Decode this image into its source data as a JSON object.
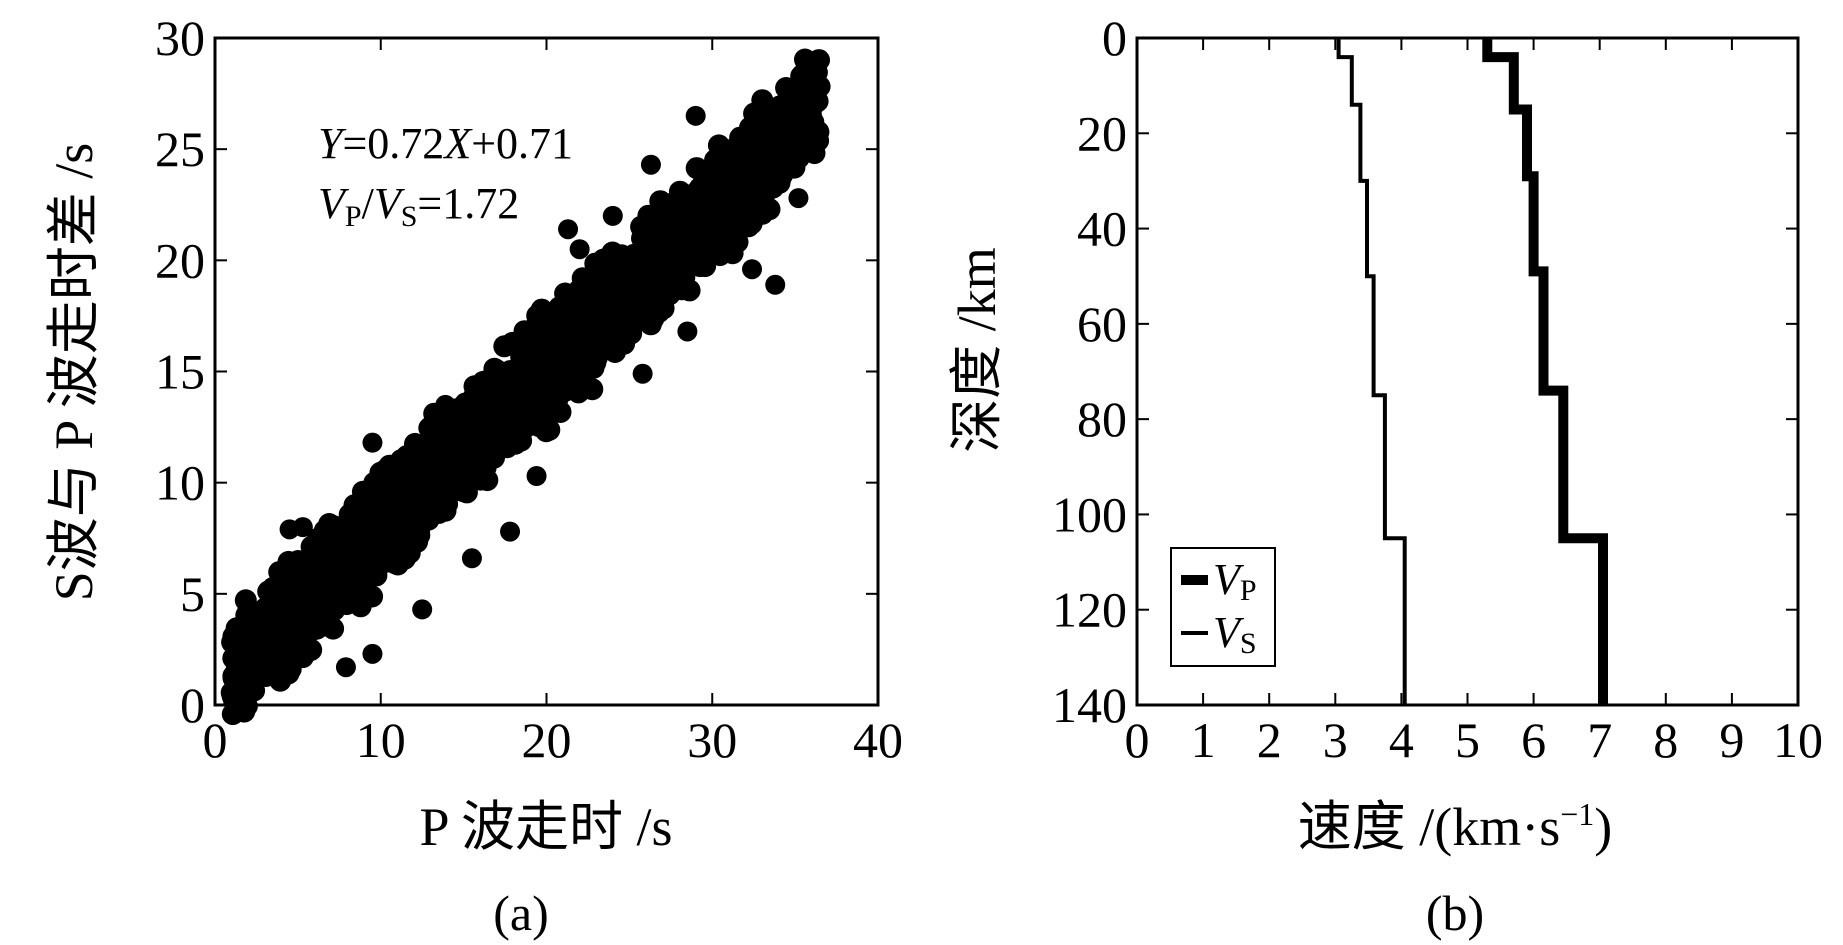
{
  "chart_data": [
    {
      "type": "scatter",
      "panel_label": "(a)",
      "xlabel": "P 波走时 /s",
      "ylabel": "S波与 P 波走时差 /s",
      "xlim": [
        0,
        40
      ],
      "ylim": [
        0,
        30
      ],
      "xticks": [
        0,
        10,
        20,
        30,
        40
      ],
      "yticks": [
        0,
        5,
        10,
        15,
        20,
        25,
        30
      ],
      "annotations": {
        "equation": {
          "Y": "Y",
          "eq1": "=0.72",
          "X": "X",
          "eq2": "+0.71"
        },
        "ratio": {
          "V": "V",
          "P": "P",
          "slash": "/",
          "V2": "V",
          "S": "S",
          "val": "=1.72"
        }
      },
      "fit": {
        "slope": 0.72,
        "intercept": 0.71
      },
      "point_cloud": {
        "x_range": [
          1,
          36.5
        ],
        "band_halfwidth": 1.7,
        "approx_count": 2000
      },
      "outliers": [
        {
          "x": 4.5,
          "y": 7.9
        },
        {
          "x": 5.3,
          "y": 8.0
        },
        {
          "x": 9.5,
          "y": 11.8
        },
        {
          "x": 12.5,
          "y": 4.3
        },
        {
          "x": 15.5,
          "y": 6.6
        },
        {
          "x": 17.8,
          "y": 7.8
        },
        {
          "x": 7.9,
          "y": 1.7
        },
        {
          "x": 9.5,
          "y": 2.3
        },
        {
          "x": 11.2,
          "y": 11.0
        },
        {
          "x": 16.7,
          "y": 12.0
        },
        {
          "x": 19.4,
          "y": 10.3
        },
        {
          "x": 25.8,
          "y": 14.9
        },
        {
          "x": 24.0,
          "y": 22.0
        },
        {
          "x": 26.3,
          "y": 24.3
        },
        {
          "x": 22.0,
          "y": 20.5
        },
        {
          "x": 29.0,
          "y": 26.5
        },
        {
          "x": 30.2,
          "y": 23.5
        },
        {
          "x": 33.8,
          "y": 18.9
        },
        {
          "x": 32.4,
          "y": 19.6
        },
        {
          "x": 36.0,
          "y": 28.3
        },
        {
          "x": 35.2,
          "y": 22.8
        },
        {
          "x": 28.5,
          "y": 16.8
        },
        {
          "x": 13.9,
          "y": 13.5
        },
        {
          "x": 21.3,
          "y": 21.4
        }
      ]
    },
    {
      "type": "line",
      "panel_label": "(b)",
      "xlabel": {
        "prefix": "速度 /(km",
        "dot": "·",
        "s": "s",
        "sup": "−1",
        "suffix": ")"
      },
      "ylabel": "深度 /km",
      "xlim": [
        0,
        10
      ],
      "ylim": [
        140,
        0
      ],
      "xticks": [
        0,
        1,
        2,
        3,
        4,
        5,
        6,
        7,
        8,
        9,
        10
      ],
      "yticks": [
        0,
        20,
        40,
        60,
        80,
        100,
        120,
        140
      ],
      "legend": {
        "placement": "bottom-left",
        "vp": {
          "V": "V",
          "sub": "P"
        },
        "vs": {
          "V": "V",
          "sub": "S"
        }
      },
      "series": [
        {
          "name": "VP",
          "line_width": "thick",
          "layers": [
            {
              "top": 0,
              "bottom": 4,
              "v": 5.3
            },
            {
              "top": 4,
              "bottom": 15,
              "v": 5.7
            },
            {
              "top": 15,
              "bottom": 29,
              "v": 5.9
            },
            {
              "top": 29,
              "bottom": 49,
              "v": 6.0
            },
            {
              "top": 49,
              "bottom": 74,
              "v": 6.15
            },
            {
              "top": 74,
              "bottom": 105,
              "v": 6.45
            },
            {
              "top": 105,
              "bottom": 140,
              "v": 7.05
            }
          ]
        },
        {
          "name": "VS",
          "line_width": "thin",
          "layers": [
            {
              "top": 0,
              "bottom": 4,
              "v": 3.05
            },
            {
              "top": 4,
              "bottom": 14,
              "v": 3.25
            },
            {
              "top": 14,
              "bottom": 30,
              "v": 3.38
            },
            {
              "top": 30,
              "bottom": 50,
              "v": 3.48
            },
            {
              "top": 50,
              "bottom": 75,
              "v": 3.58
            },
            {
              "top": 75,
              "bottom": 105,
              "v": 3.75
            },
            {
              "top": 105,
              "bottom": 140,
              "v": 4.05
            }
          ]
        }
      ]
    }
  ]
}
